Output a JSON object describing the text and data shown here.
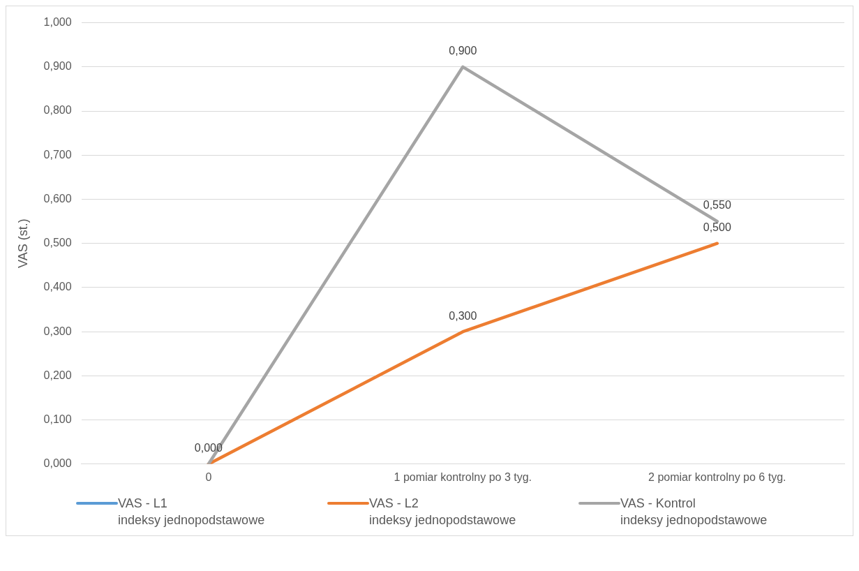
{
  "chart_data": {
    "type": "line",
    "ylabel": "VAS (st.)",
    "categories": [
      "0",
      "1 pomiar kontrolny po 3 tyg.",
      "2 pomiar kontrolny po 6 tyg."
    ],
    "ylim": [
      0,
      1
    ],
    "yticks": [
      {
        "value": 0,
        "label": "0,000"
      },
      {
        "value": 0.1,
        "label": "0,100"
      },
      {
        "value": 0.2,
        "label": "0,200"
      },
      {
        "value": 0.3,
        "label": "0,300"
      },
      {
        "value": 0.4,
        "label": "0,400"
      },
      {
        "value": 0.5,
        "label": "0,500"
      },
      {
        "value": 0.6,
        "label": "0,600"
      },
      {
        "value": 0.7,
        "label": "0,700"
      },
      {
        "value": 0.8,
        "label": "0,800"
      },
      {
        "value": 0.9,
        "label": "0,900"
      },
      {
        "value": 1,
        "label": "1,000"
      }
    ],
    "grid": "y",
    "legend": "bottom",
    "marker": "none",
    "line_style": "solid",
    "series": [
      {
        "name": "VAS - L1\nindeksy jednopodstawowe",
        "color": "#5b9bd5",
        "values": [
          null,
          null,
          null
        ]
      },
      {
        "name": "VAS - L2\nindeksy jednopodstawowe",
        "color": "#ed7d31",
        "values": [
          0,
          0.3,
          0.5
        ],
        "value_labels": [
          "0,000",
          "0,300",
          "0,500"
        ]
      },
      {
        "name": "VAS - Kontrol\nindeksy jednopodstawowe",
        "color": "#a5a5a5",
        "values": [
          0,
          0.9,
          0.55
        ],
        "value_labels": [
          null,
          "0,900",
          "0,550"
        ]
      }
    ]
  }
}
